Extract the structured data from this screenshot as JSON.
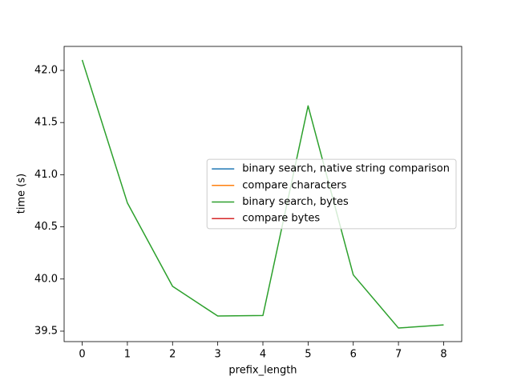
{
  "chart_data": {
    "type": "line",
    "x": [
      0,
      1,
      2,
      3,
      4,
      5,
      6,
      7,
      8
    ],
    "xlabel": "prefix_length",
    "ylabel": "time (s)",
    "series": [
      {
        "name": "binary search, native string comparison",
        "color": "#1f77b4",
        "values": [
          null,
          null,
          null,
          null,
          null,
          null,
          null,
          null,
          null
        ]
      },
      {
        "name": "compare characters",
        "color": "#ff7f0e",
        "values": [
          null,
          null,
          null,
          null,
          null,
          null,
          null,
          null,
          null
        ]
      },
      {
        "name": "binary search, bytes",
        "color": "#2ca02c",
        "values": [
          42.1,
          40.73,
          39.93,
          39.645,
          39.65,
          41.66,
          40.04,
          39.53,
          39.56
        ]
      },
      {
        "name": "compare bytes",
        "color": "#d62728",
        "values": [
          null,
          null,
          null,
          null,
          null,
          null,
          null,
          null,
          null
        ]
      }
    ],
    "xlim": [
      -0.4,
      8.4
    ],
    "xticks": [
      0,
      1,
      2,
      3,
      4,
      5,
      6,
      7,
      8
    ],
    "ylim": [
      39.4,
      42.23
    ],
    "yticks": [
      {
        "value": 39.5,
        "label": "39.5"
      },
      {
        "value": 40,
        "label": "40.0"
      },
      40.5,
      {
        "value": 41,
        "label": "41.0"
      },
      41.5,
      {
        "value": 42,
        "label": "42.0"
      }
    ],
    "legend": "center right",
    "grid": false
  }
}
